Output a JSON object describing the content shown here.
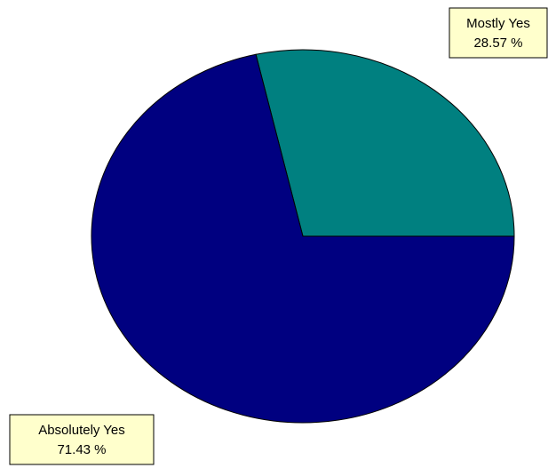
{
  "chart_data": {
    "type": "pie",
    "title": "",
    "slices": [
      {
        "label": "Mostly Yes",
        "value": 28.57,
        "value_text": "28.57 %",
        "color": "#008080"
      },
      {
        "label": "Absolutely Yes",
        "value": 71.43,
        "value_text": "71.43 %",
        "color": "#000080"
      }
    ],
    "start_angle_deg": 0,
    "direction": "counterclockwise",
    "legend": "none"
  }
}
